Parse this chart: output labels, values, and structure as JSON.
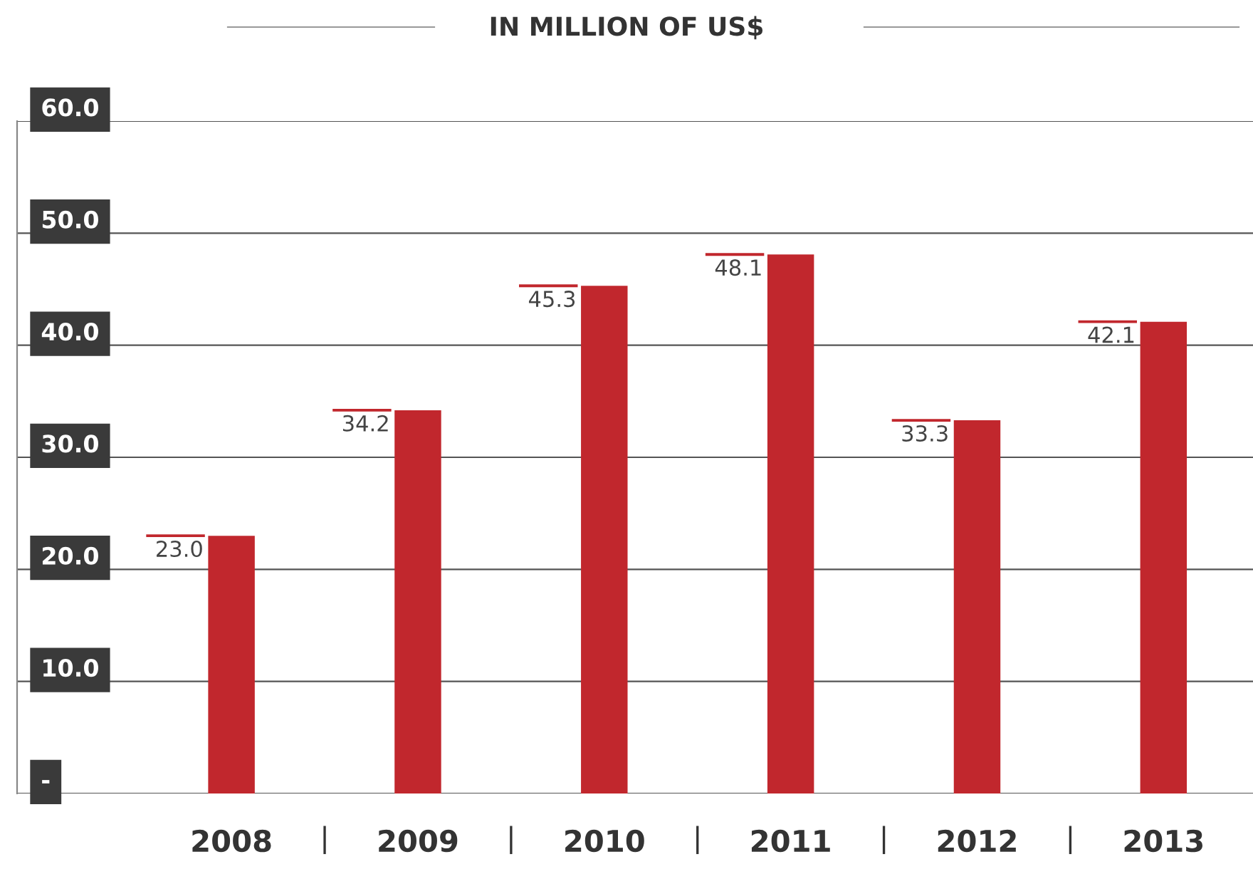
{
  "chart_data": {
    "type": "bar",
    "title": "IN MILLION OF US$",
    "categories": [
      "2008",
      "2009",
      "2010",
      "2011",
      "2012",
      "2013"
    ],
    "values": [
      23.0,
      34.2,
      45.3,
      48.1,
      33.3,
      42.1
    ],
    "value_labels": [
      "23.0",
      "34.2",
      "45.3",
      "48.1",
      "33.3",
      "42.1"
    ],
    "color": "#c1272d",
    "ylim": [
      0,
      60
    ],
    "yticks": [
      {
        "value": 0,
        "label": "-"
      },
      {
        "value": 10,
        "label": "10.0"
      },
      {
        "value": 20,
        "label": "20.0"
      },
      {
        "value": 30,
        "label": "30.0"
      },
      {
        "value": 40,
        "label": "40.0"
      },
      {
        "value": 50,
        "label": "50.0"
      },
      {
        "value": 60,
        "label": "60.0"
      }
    ],
    "grid": "y"
  }
}
